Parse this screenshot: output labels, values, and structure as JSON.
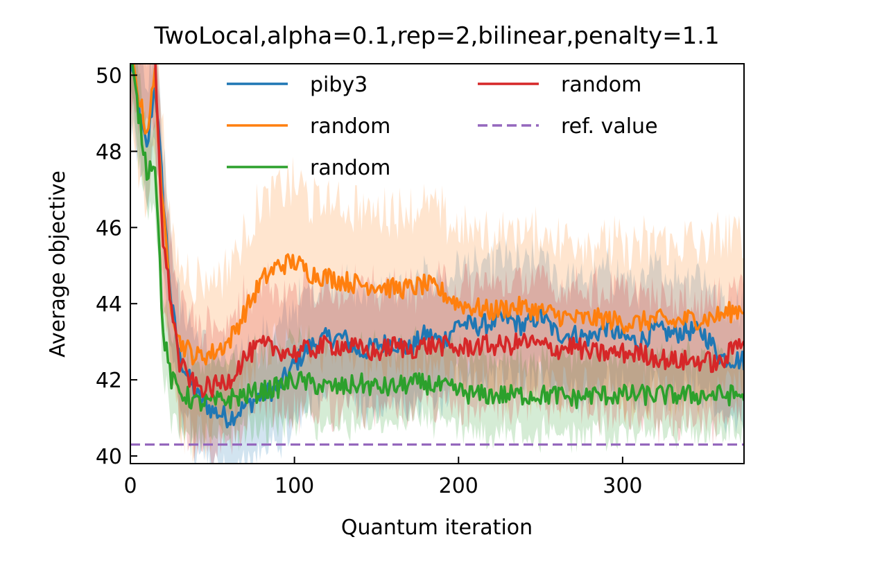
{
  "chart_data": {
    "type": "line",
    "title": "TwoLocal,alpha=0.1,rep=2,bilinear,penalty=1.1",
    "xlabel": "Quantum iteration",
    "ylabel": "Average objective",
    "xlim": [
      0,
      374
    ],
    "ylim": [
      39.8,
      50.3
    ],
    "xticks": [
      0,
      100,
      200,
      300
    ],
    "yticks": [
      40,
      42,
      44,
      46,
      48,
      50
    ],
    "grid": false,
    "legend_position": "top-center",
    "legend_columns": 2,
    "reference_line": {
      "name": "ref. value",
      "value": 40.3,
      "color": "#9467bd",
      "style": "dashed"
    },
    "series": [
      {
        "name": "piby3",
        "color": "#1f77b4",
        "x": [
          0,
          5,
          10,
          15,
          20,
          25,
          30,
          40,
          50,
          60,
          70,
          80,
          90,
          100,
          110,
          120,
          130,
          140,
          150,
          160,
          170,
          180,
          190,
          200,
          210,
          220,
          230,
          240,
          250,
          260,
          270,
          280,
          290,
          300,
          310,
          320,
          330,
          340,
          350,
          360,
          374
        ],
        "values": [
          50.5,
          49.2,
          48.0,
          49.8,
          46.8,
          44.0,
          42.6,
          41.6,
          41.2,
          41.0,
          41.3,
          41.6,
          41.8,
          42.4,
          42.9,
          43.1,
          43.1,
          42.7,
          42.9,
          43.0,
          42.8,
          43.2,
          43.0,
          43.5,
          43.4,
          43.5,
          43.6,
          43.4,
          43.7,
          43.2,
          43.2,
          43.1,
          43.4,
          43.1,
          43.0,
          43.3,
          43.2,
          43.3,
          43.2,
          42.6,
          42.5
        ],
        "band": 1.5
      },
      {
        "name": "random",
        "color": "#ff7f0e",
        "x": [
          0,
          5,
          10,
          15,
          20,
          25,
          30,
          40,
          50,
          60,
          70,
          80,
          90,
          100,
          110,
          120,
          130,
          140,
          150,
          160,
          170,
          180,
          190,
          200,
          210,
          220,
          230,
          240,
          250,
          260,
          270,
          280,
          290,
          300,
          310,
          320,
          330,
          340,
          350,
          360,
          374
        ],
        "values": [
          50.5,
          49.5,
          48.5,
          50.0,
          46.3,
          44.0,
          43.0,
          42.6,
          42.7,
          43.0,
          43.8,
          44.6,
          45.0,
          45.1,
          44.8,
          44.7,
          44.6,
          44.5,
          44.5,
          44.4,
          44.4,
          44.5,
          44.3,
          44.0,
          43.9,
          43.8,
          43.9,
          43.9,
          43.8,
          43.7,
          43.6,
          43.6,
          43.6,
          43.5,
          43.5,
          43.6,
          43.5,
          43.6,
          43.6,
          43.7,
          43.9
        ],
        "band": 2.0
      },
      {
        "name": "random",
        "color": "#2ca02c",
        "x": [
          0,
          5,
          10,
          15,
          20,
          25,
          30,
          40,
          50,
          60,
          70,
          80,
          90,
          100,
          110,
          120,
          130,
          140,
          150,
          160,
          170,
          180,
          190,
          200,
          210,
          220,
          230,
          240,
          250,
          260,
          270,
          280,
          290,
          300,
          310,
          320,
          330,
          340,
          350,
          360,
          374
        ],
        "values": [
          50.5,
          49.0,
          47.5,
          47.8,
          43.2,
          42.0,
          41.7,
          41.4,
          41.4,
          41.5,
          41.6,
          41.7,
          41.8,
          42.0,
          41.9,
          41.8,
          41.8,
          41.9,
          41.8,
          41.8,
          41.9,
          41.9,
          41.8,
          41.7,
          41.6,
          41.6,
          41.6,
          41.6,
          41.6,
          41.6,
          41.5,
          41.6,
          41.6,
          41.6,
          41.6,
          41.6,
          41.6,
          41.6,
          41.6,
          41.6,
          41.6
        ],
        "band": 1.0
      },
      {
        "name": "random",
        "color": "#d62728",
        "x": [
          0,
          5,
          10,
          15,
          20,
          25,
          30,
          40,
          50,
          60,
          70,
          80,
          90,
          100,
          110,
          120,
          130,
          140,
          150,
          160,
          170,
          180,
          190,
          200,
          210,
          220,
          230,
          240,
          250,
          260,
          270,
          280,
          290,
          300,
          310,
          320,
          330,
          340,
          350,
          360,
          374
        ],
        "values": [
          50.5,
          50.5,
          50.4,
          50.4,
          45.6,
          44.0,
          42.4,
          41.8,
          41.8,
          42.0,
          42.6,
          42.9,
          42.8,
          42.7,
          42.8,
          42.9,
          42.9,
          42.8,
          42.7,
          42.9,
          42.8,
          42.9,
          42.9,
          42.8,
          42.9,
          42.9,
          42.9,
          43.0,
          42.9,
          42.8,
          42.9,
          42.7,
          42.7,
          42.7,
          42.7,
          42.6,
          42.5,
          42.5,
          42.5,
          42.4,
          43.2
        ],
        "band": 1.6
      }
    ]
  }
}
